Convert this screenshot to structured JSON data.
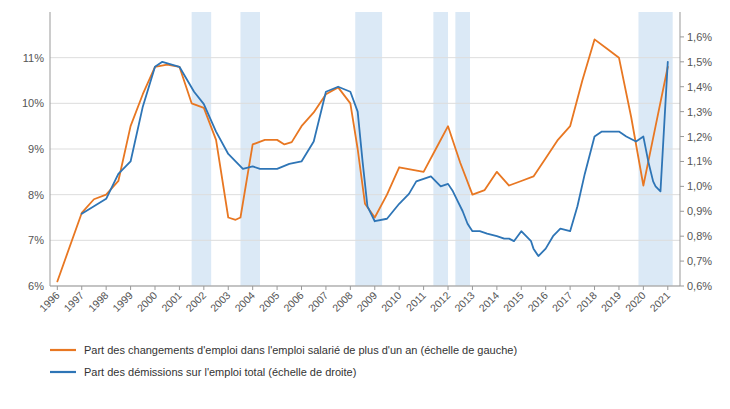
{
  "chart_data": {
    "type": "line",
    "series": [
      {
        "name": "Part des changements d'emploi dans l'emploi salarié de plus d'un an (échelle de gauche)",
        "color": "#E87722",
        "axis": "y",
        "x": [
          1996,
          1997,
          1997.5,
          1998,
          1998.5,
          1999,
          1999.5,
          2000,
          2000.5,
          2001,
          2001.5,
          2002,
          2002.5,
          2003,
          2003.3,
          2003.5,
          2004,
          2004.5,
          2005,
          2005.3,
          2005.6,
          2006,
          2006.5,
          2007,
          2007.5,
          2008,
          2008.3,
          2008.6,
          2009,
          2009.5,
          2010,
          2010.5,
          2011,
          2011.5,
          2012,
          2012.5,
          2013,
          2013.5,
          2014,
          2014.5,
          2015,
          2015.5,
          2016,
          2016.5,
          2017,
          2017.5,
          2018,
          2018.5,
          2019,
          2019.5,
          2020,
          2020.5,
          2021
        ],
        "values": [
          6.1,
          7.6,
          7.9,
          8.0,
          8.3,
          9.5,
          10.2,
          10.8,
          10.85,
          10.8,
          10.0,
          9.9,
          9.2,
          7.5,
          7.45,
          7.5,
          9.1,
          9.2,
          9.2,
          9.1,
          9.15,
          9.5,
          9.8,
          10.2,
          10.35,
          10.0,
          9.0,
          7.8,
          7.5,
          8.0,
          8.6,
          8.55,
          8.5,
          9.0,
          9.5,
          8.7,
          8.0,
          8.1,
          8.5,
          8.2,
          8.3,
          8.4,
          8.8,
          9.2,
          9.5,
          10.5,
          11.4,
          11.2,
          11.0,
          9.7,
          8.2,
          9.5,
          10.8
        ]
      },
      {
        "name": "Part des démissions sur l'emploi total (échelle de droite)",
        "color": "#2E75B6",
        "axis": "y2",
        "x": [
          1997,
          1997.5,
          1998,
          1998.5,
          1999,
          1999.5,
          2000,
          2000.3,
          2001,
          2001.3,
          2001.6,
          2002,
          2002.5,
          2003,
          2003.3,
          2003.6,
          2004,
          2004.3,
          2004.6,
          2005,
          2005.5,
          2006,
          2006.5,
          2007,
          2007.5,
          2008,
          2008.3,
          2008.5,
          2008.7,
          2009,
          2009.5,
          2010,
          2010.4,
          2010.7,
          2011,
          2011.3,
          2011.5,
          2011.7,
          2012,
          2012.2,
          2012.4,
          2012.6,
          2012.8,
          2013,
          2013.3,
          2013.6,
          2014,
          2014.3,
          2014.5,
          2014.7,
          2015,
          2015.2,
          2015.4,
          2015.5,
          2015.7,
          2016,
          2016.3,
          2016.6,
          2017,
          2017.3,
          2017.6,
          2018,
          2018.3,
          2018.6,
          2019,
          2019.3,
          2019.5,
          2019.7,
          2020,
          2020.2,
          2020.4,
          2020.5,
          2020.6,
          2020.7,
          2021
        ],
        "values": [
          0.89,
          0.92,
          0.95,
          1.05,
          1.1,
          1.32,
          1.48,
          1.5,
          1.48,
          1.43,
          1.38,
          1.33,
          1.22,
          1.13,
          1.1,
          1.07,
          1.08,
          1.07,
          1.07,
          1.07,
          1.09,
          1.1,
          1.18,
          1.38,
          1.4,
          1.38,
          1.3,
          1.1,
          0.92,
          0.86,
          0.87,
          0.93,
          0.97,
          1.02,
          1.03,
          1.04,
          1.02,
          1.0,
          1.01,
          0.98,
          0.94,
          0.9,
          0.85,
          0.82,
          0.82,
          0.81,
          0.8,
          0.79,
          0.79,
          0.78,
          0.82,
          0.8,
          0.78,
          0.75,
          0.72,
          0.75,
          0.8,
          0.83,
          0.82,
          0.92,
          1.05,
          1.2,
          1.22,
          1.22,
          1.22,
          1.2,
          1.19,
          1.18,
          1.2,
          1.1,
          1.02,
          1.0,
          0.99,
          0.98,
          1.5
        ]
      }
    ],
    "shaded_regions": {
      "color": "#BDD7EE",
      "ranges": [
        [
          2001.5,
          2002.3
        ],
        [
          2003.5,
          2004.3
        ],
        [
          2008.2,
          2009.3
        ],
        [
          2011.4,
          2012.0
        ],
        [
          2012.3,
          2012.9
        ],
        [
          2019.8,
          2021.2
        ]
      ]
    },
    "xlim": [
      1995.7,
      2021.5
    ],
    "xticks": [
      1996,
      1997,
      1998,
      1999,
      2000,
      2001,
      2002,
      2003,
      2004,
      2005,
      2006,
      2007,
      2008,
      2009,
      2010,
      2011,
      2012,
      2013,
      2014,
      2015,
      2016,
      2017,
      2018,
      2019,
      2020,
      2021
    ],
    "ylim": [
      6.0,
      12.0
    ],
    "yticks": [
      {
        "value": 6,
        "label": "6%"
      },
      {
        "value": 7,
        "label": "7%"
      },
      {
        "value": 8,
        "label": "8%"
      },
      {
        "value": 9,
        "label": "9%"
      },
      {
        "value": 10,
        "label": "10%"
      },
      {
        "value": 11,
        "label": "11%"
      }
    ],
    "y2lim": [
      0.6,
      1.7
    ],
    "y2ticks": [
      {
        "value": 0.6,
        "label": "0,6%"
      },
      {
        "value": 0.7,
        "label": "0,7%"
      },
      {
        "value": 0.8,
        "label": "0,8%"
      },
      {
        "value": 0.9,
        "label": "0,9%"
      },
      {
        "value": 1.0,
        "label": "1,0%"
      },
      {
        "value": 1.1,
        "label": "1,1%"
      },
      {
        "value": 1.2,
        "label": "1,2%"
      },
      {
        "value": 1.3,
        "label": "1,3%"
      },
      {
        "value": 1.4,
        "label": "1,4%"
      },
      {
        "value": 1.5,
        "label": "1,5%"
      },
      {
        "value": 1.6,
        "label": "1,6%"
      }
    ],
    "grid": true,
    "legend": "bottom"
  }
}
